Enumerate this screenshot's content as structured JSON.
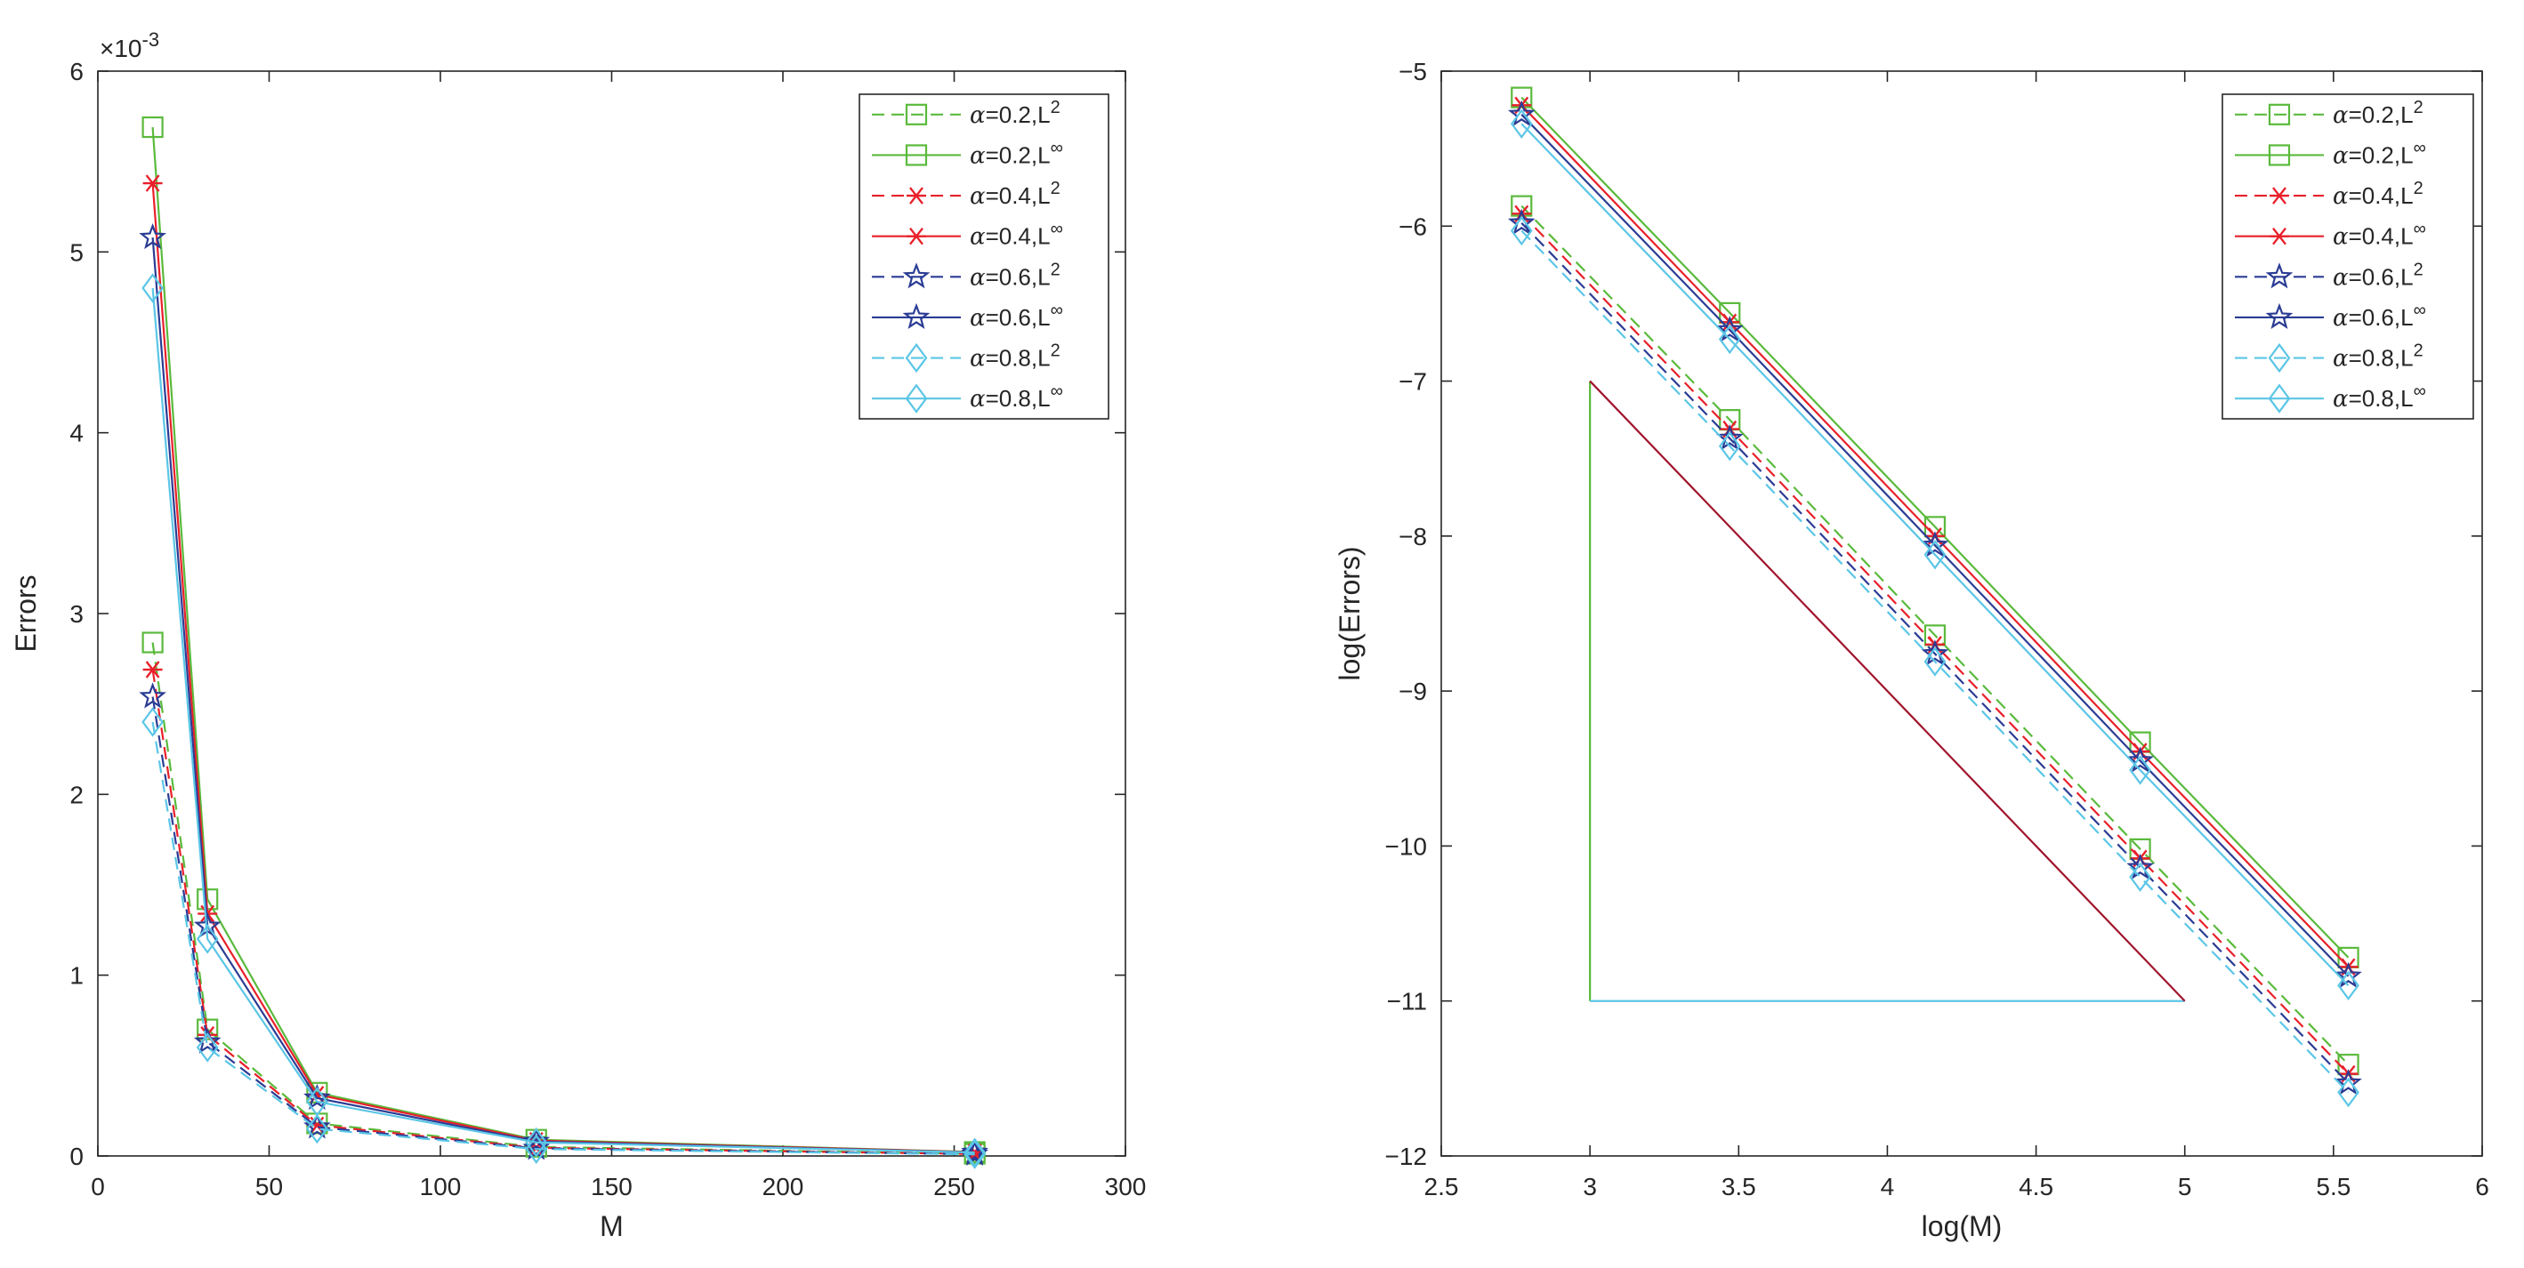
{
  "chart_data": [
    {
      "type": "line",
      "xlabel": "M",
      "ylabel": "Errors",
      "xlim": [
        0,
        300
      ],
      "ylim": [
        0,
        6
      ],
      "xticks": [
        0,
        50,
        100,
        150,
        200,
        250,
        300
      ],
      "yticks": [
        0,
        1,
        2,
        3,
        4,
        5,
        6
      ],
      "y_exponent_label": {
        "base": "×10",
        "exp": "-3"
      },
      "grid": false,
      "legend_position": "top-right",
      "x": [
        16,
        32,
        64,
        128,
        256
      ],
      "series": [
        {
          "name": "α=0.2,L²",
          "alpha": "α",
          "label": "=0.2,L",
          "sup": "2",
          "color": "#5aba3c",
          "dash": true,
          "marker": "square",
          "values": [
            2.84,
            0.7,
            0.18,
            0.05,
            0.012
          ]
        },
        {
          "name": "α=0.2,L∞",
          "alpha": "α",
          "label": "=0.2,L",
          "sup": "∞",
          "color": "#5aba3c",
          "dash": false,
          "marker": "square",
          "values": [
            5.69,
            1.42,
            0.35,
            0.09,
            0.022
          ]
        },
        {
          "name": "α=0.4,L²",
          "alpha": "α",
          "label": "=0.4,L",
          "sup": "2",
          "color": "#e8202a",
          "dash": true,
          "marker": "asterisk",
          "values": [
            2.69,
            0.67,
            0.17,
            0.045,
            0.011
          ]
        },
        {
          "name": "α=0.4,L∞",
          "alpha": "α",
          "label": "=0.4,L",
          "sup": "∞",
          "color": "#e8202a",
          "dash": false,
          "marker": "asterisk",
          "values": [
            5.38,
            1.34,
            0.34,
            0.085,
            0.021
          ]
        },
        {
          "name": "α=0.6,L²",
          "alpha": "α",
          "label": "=0.6,L",
          "sup": "2",
          "color": "#2b3c94",
          "dash": true,
          "marker": "star",
          "values": [
            2.54,
            0.63,
            0.16,
            0.042,
            0.01
          ]
        },
        {
          "name": "α=0.6,L∞",
          "alpha": "α",
          "label": "=0.6,L",
          "sup": "∞",
          "color": "#2b3c94",
          "dash": false,
          "marker": "star",
          "values": [
            5.08,
            1.27,
            0.32,
            0.08,
            0.02
          ]
        },
        {
          "name": "α=0.8,L²",
          "alpha": "α",
          "label": "=0.8,L",
          "sup": "2",
          "color": "#5bc6e6",
          "dash": true,
          "marker": "diamond",
          "values": [
            2.4,
            0.6,
            0.15,
            0.038,
            0.009
          ]
        },
        {
          "name": "α=0.8,L∞",
          "alpha": "α",
          "label": "=0.8,L",
          "sup": "∞",
          "color": "#5bc6e6",
          "dash": false,
          "marker": "diamond",
          "values": [
            4.8,
            1.2,
            0.3,
            0.075,
            0.019
          ]
        }
      ]
    },
    {
      "type": "line",
      "xlabel": "log(M)",
      "ylabel": "log(Errors)",
      "xlim": [
        2.5,
        6
      ],
      "ylim": [
        -12,
        -5
      ],
      "xticks": [
        2.5,
        3,
        3.5,
        4,
        4.5,
        5,
        5.5,
        6
      ],
      "yticks": [
        -12,
        -11,
        -10,
        -9,
        -8,
        -7,
        -6,
        -5
      ],
      "grid": false,
      "legend_position": "top-right",
      "x": [
        2.77,
        3.47,
        4.16,
        4.85,
        5.55
      ],
      "series": [
        {
          "name": "α=0.2,L²",
          "alpha": "α",
          "label": "=0.2,L",
          "sup": "2",
          "color": "#5aba3c",
          "dash": true,
          "marker": "square",
          "values": [
            -5.87,
            -7.25,
            -8.64,
            -10.02,
            -11.41
          ]
        },
        {
          "name": "α=0.2,L∞",
          "alpha": "α",
          "label": "=0.2,L",
          "sup": "∞",
          "color": "#5aba3c",
          "dash": false,
          "marker": "square",
          "values": [
            -5.17,
            -6.56,
            -7.94,
            -9.33,
            -10.72
          ]
        },
        {
          "name": "α=0.4,L²",
          "alpha": "α",
          "label": "=0.4,L",
          "sup": "2",
          "color": "#e8202a",
          "dash": true,
          "marker": "asterisk",
          "values": [
            -5.92,
            -7.31,
            -8.7,
            -10.08,
            -11.47
          ]
        },
        {
          "name": "α=0.4,L∞",
          "alpha": "α",
          "label": "=0.4,L",
          "sup": "∞",
          "color": "#e8202a",
          "dash": false,
          "marker": "asterisk",
          "values": [
            -5.22,
            -6.62,
            -8.0,
            -9.39,
            -10.78
          ]
        },
        {
          "name": "α=0.6,L²",
          "alpha": "α",
          "label": "=0.6,L",
          "sup": "2",
          "color": "#2b3c94",
          "dash": true,
          "marker": "star",
          "values": [
            -5.98,
            -7.37,
            -8.76,
            -10.14,
            -11.53
          ]
        },
        {
          "name": "α=0.6,L∞",
          "alpha": "α",
          "label": "=0.6,L",
          "sup": "∞",
          "color": "#2b3c94",
          "dash": false,
          "marker": "star",
          "values": [
            -5.28,
            -6.67,
            -8.06,
            -9.45,
            -10.84
          ]
        },
        {
          "name": "α=0.8,L²",
          "alpha": "α",
          "label": "=0.8,L",
          "sup": "2",
          "color": "#5bc6e6",
          "dash": true,
          "marker": "diamond",
          "values": [
            -6.03,
            -7.42,
            -8.81,
            -10.2,
            -11.59
          ]
        },
        {
          "name": "α=0.8,L∞",
          "alpha": "α",
          "label": "=0.8,L",
          "sup": "∞",
          "color": "#5bc6e6",
          "dash": false,
          "marker": "diamond",
          "values": [
            -5.34,
            -6.73,
            -8.12,
            -9.51,
            -10.9
          ]
        }
      ],
      "reference_triangle": {
        "vertical": {
          "x": [
            3,
            3
          ],
          "y": [
            -7,
            -11
          ],
          "color": "#5aba3c"
        },
        "horizontal": {
          "x": [
            3,
            5
          ],
          "y": [
            -11,
            -11
          ],
          "color": "#5bc6e6"
        },
        "hypotenuse": {
          "x": [
            3,
            5
          ],
          "y": [
            -7,
            -11
          ],
          "color": "#a0142c"
        }
      }
    }
  ]
}
